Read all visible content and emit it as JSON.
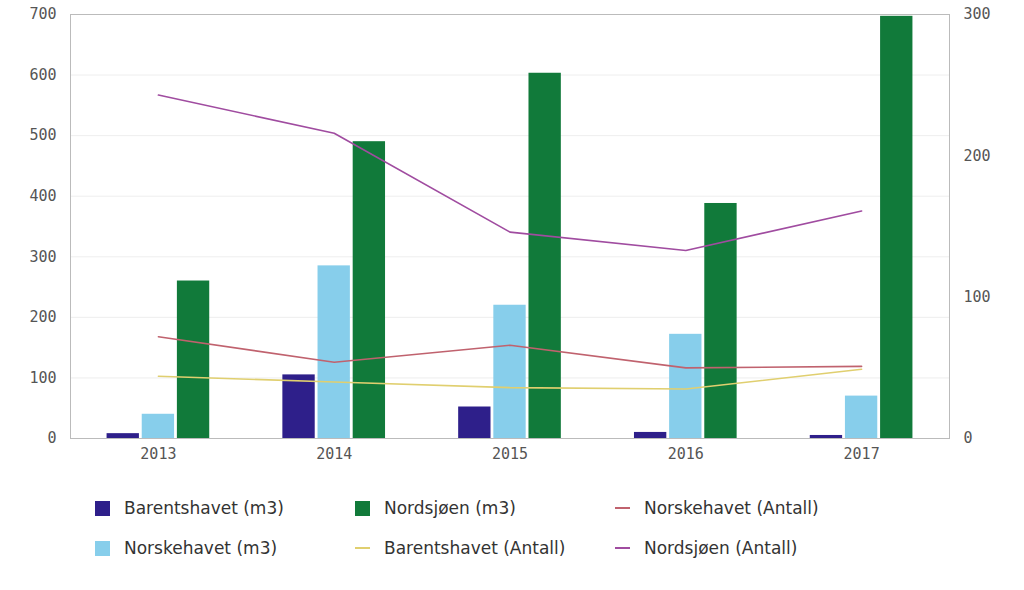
{
  "chart_data": {
    "type": "bar",
    "categories": [
      "2013",
      "2014",
      "2015",
      "2016",
      "2017"
    ],
    "series": [
      {
        "name": "Barentshavet (m3)",
        "type": "bar",
        "color": "#2e1f8a",
        "values": [
          8,
          105,
          52,
          10,
          5
        ]
      },
      {
        "name": "Norskehavet (m3)",
        "type": "bar",
        "color": "#87ceeb",
        "values": [
          40,
          285,
          220,
          172,
          70
        ]
      },
      {
        "name": "Nordsjøen (m3)",
        "type": "bar",
        "color": "#117a3a",
        "values": [
          260,
          490,
          603,
          388,
          697
        ]
      },
      {
        "name": "Barentshavet (Antall)",
        "type": "line",
        "axis": "y2",
        "color": "#e0cf6f",
        "values": [
          44,
          40,
          36,
          35,
          49
        ]
      },
      {
        "name": "Norskehavet (Antall)",
        "type": "line",
        "axis": "y2",
        "color": "#c0626e",
        "values": [
          72,
          54,
          66,
          50,
          51
        ]
      },
      {
        "name": "Nordsjøen (Antall)",
        "type": "line",
        "axis": "y2",
        "color": "#a04ca0",
        "values": [
          243,
          216,
          146,
          133,
          161
        ]
      }
    ],
    "ylim": [
      0,
      700
    ],
    "yticks": [
      0,
      100,
      200,
      300,
      400,
      500,
      600,
      700
    ],
    "y2lim": [
      0,
      300
    ],
    "y2ticks": [
      0,
      100,
      200,
      300
    ],
    "grid": true,
    "legend": "bottom"
  }
}
